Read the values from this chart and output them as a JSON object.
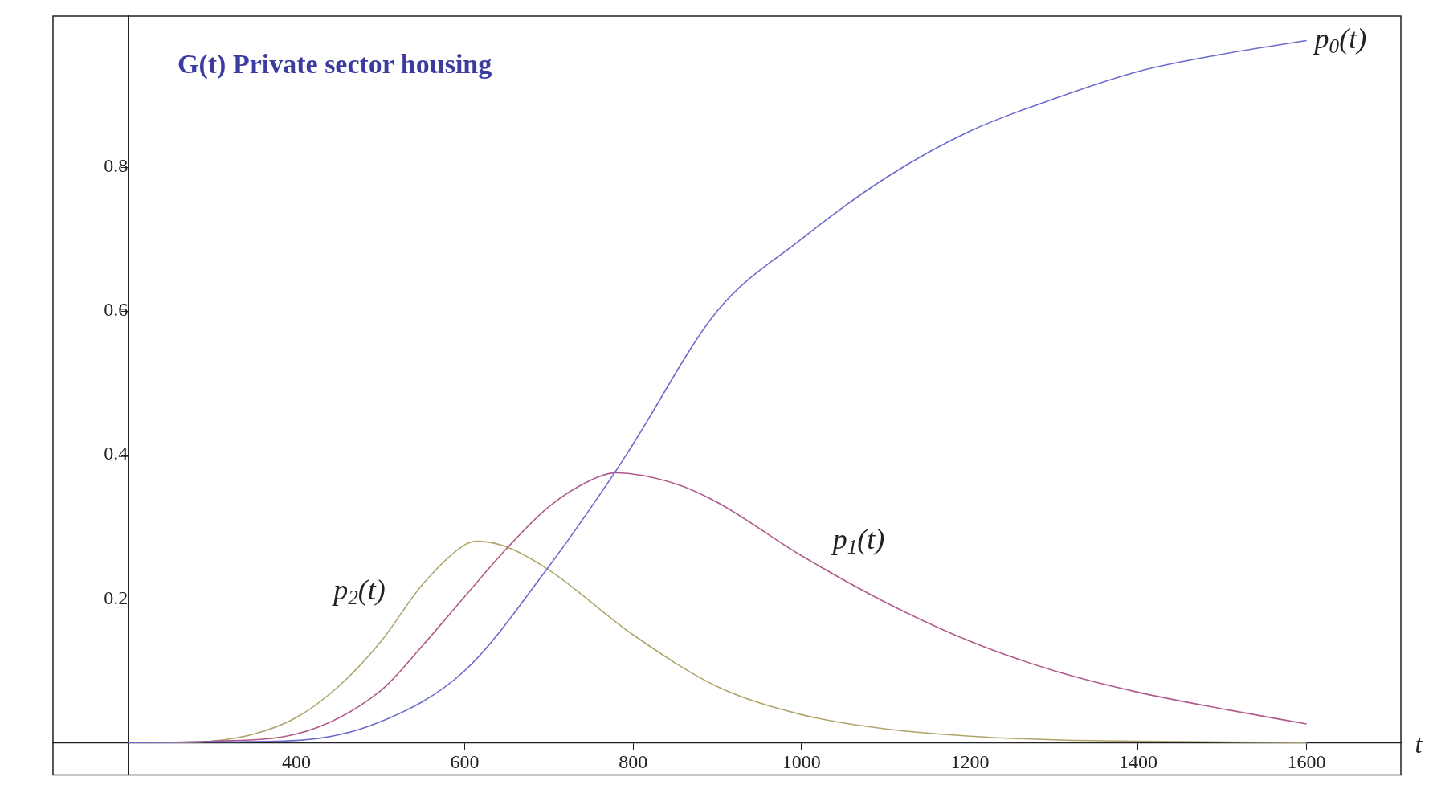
{
  "chart_data": {
    "type": "line",
    "title": "G(t) Private sector housing",
    "xlabel": "t",
    "xlim": [
      111,
      1712
    ],
    "ylim": [
      -0.045,
      1.01
    ],
    "xticks": [
      400,
      600,
      800,
      1000,
      1200,
      1400,
      1600
    ],
    "yticks": [
      0.2,
      0.4,
      0.6,
      0.8
    ],
    "grid": false,
    "legend": false,
    "marker": "none",
    "line_style": "solid",
    "series": [
      {
        "name": "p$_{0}$(t)",
        "color": "#6b6bcc",
        "x": [
          200,
          300,
          400,
          500,
          600,
          700,
          778,
          800,
          900,
          1000,
          1100,
          1200,
          1300,
          1400,
          1500,
          1600
        ],
        "values": [
          0,
          0.001,
          0.003,
          0.029,
          0.1,
          0.245,
          0.375,
          0.415,
          0.6,
          0.7,
          0.785,
          0.85,
          0.895,
          0.933,
          0.957,
          0.976
        ]
      },
      {
        "name": "p$_{1}$(t)",
        "color": "#b05a8c",
        "x": [
          200,
          300,
          400,
          500,
          550,
          600,
          650,
          700,
          750,
          778,
          850,
          900,
          1000,
          1100,
          1200,
          1300,
          1400,
          1500,
          1600
        ],
        "values": [
          0,
          0.002,
          0.012,
          0.072,
          0.135,
          0.203,
          0.27,
          0.328,
          0.365,
          0.375,
          0.36,
          0.334,
          0.26,
          0.195,
          0.141,
          0.1,
          0.07,
          0.047,
          0.026
        ]
      },
      {
        "name": "p$_{2}$(t)",
        "color": "#b0a46a",
        "x": [
          200,
          250,
          300,
          350,
          400,
          450,
          500,
          550,
          600,
          615,
          650,
          700,
          800,
          900,
          1000,
          1100,
          1200,
          1300,
          1400,
          1600
        ],
        "values": [
          0,
          0,
          0.002,
          0.012,
          0.035,
          0.078,
          0.14,
          0.22,
          0.275,
          0.28,
          0.272,
          0.24,
          0.15,
          0.078,
          0.039,
          0.019,
          0.009,
          0.004,
          0.002,
          0
        ]
      }
    ]
  }
}
